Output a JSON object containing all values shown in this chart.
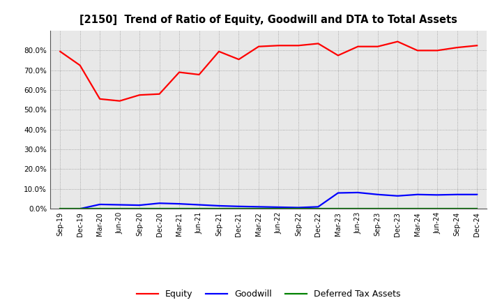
{
  "title": "[2150]  Trend of Ratio of Equity, Goodwill and DTA to Total Assets",
  "x_labels": [
    "Sep-19",
    "Dec-19",
    "Mar-20",
    "Jun-20",
    "Sep-20",
    "Dec-20",
    "Mar-21",
    "Jun-21",
    "Sep-21",
    "Dec-21",
    "Mar-22",
    "Jun-22",
    "Sep-22",
    "Dec-22",
    "Mar-23",
    "Jun-23",
    "Sep-23",
    "Dec-23",
    "Mar-24",
    "Jun-24",
    "Sep-24",
    "Dec-24"
  ],
  "equity": [
    0.795,
    0.725,
    0.555,
    0.545,
    0.575,
    0.58,
    0.69,
    0.678,
    0.795,
    0.755,
    0.82,
    0.825,
    0.825,
    0.835,
    0.775,
    0.82,
    0.82,
    0.845,
    0.8,
    0.8,
    0.815,
    0.825
  ],
  "goodwill": [
    0.0,
    0.0,
    0.022,
    0.02,
    0.018,
    0.028,
    0.025,
    0.02,
    0.015,
    0.012,
    0.01,
    0.008,
    0.006,
    0.01,
    0.08,
    0.082,
    0.072,
    0.065,
    0.072,
    0.07,
    0.072,
    0.072
  ],
  "dta": [
    0.0,
    0.0,
    0.0,
    0.0,
    0.0,
    0.0,
    0.0,
    0.0,
    0.0,
    0.0,
    0.0,
    0.0,
    0.0,
    0.0,
    0.0,
    0.0,
    0.0,
    0.0,
    0.0,
    0.0,
    0.0,
    0.0
  ],
  "equity_color": "#FF0000",
  "goodwill_color": "#0000FF",
  "dta_color": "#008000",
  "ylim": [
    0.0,
    0.9
  ],
  "yticks": [
    0.0,
    0.1,
    0.2,
    0.3,
    0.4,
    0.5,
    0.6,
    0.7,
    0.8
  ],
  "background_color": "#FFFFFF",
  "grid_color": "#808080",
  "plot_bg_color": "#E8E8E8"
}
